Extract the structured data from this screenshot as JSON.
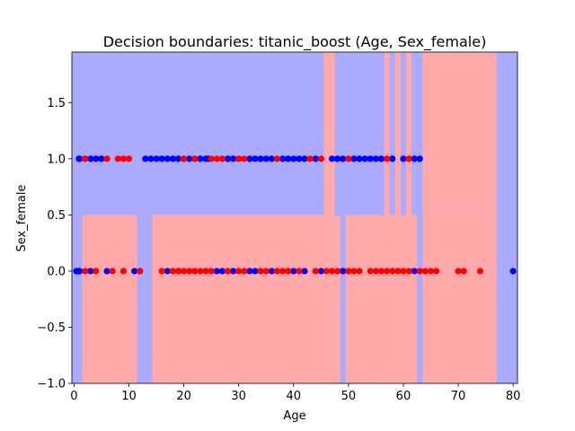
{
  "chart_data": {
    "type": "scatter",
    "title": "Decision boundaries: titanic_boost (Age, Sex_female)",
    "xlabel": "Age",
    "ylabel": "Sex_female",
    "xlim": [
      -0.4,
      80.8
    ],
    "ylim": [
      -1.0,
      1.95
    ],
    "xticks": [
      0,
      10,
      20,
      30,
      40,
      50,
      60,
      70,
      80
    ],
    "yticks": [
      -1.0,
      -0.5,
      0.0,
      0.5,
      1.0,
      1.5
    ],
    "x_tick_labels": [
      "0",
      "10",
      "20",
      "30",
      "40",
      "50",
      "60",
      "70",
      "80"
    ],
    "y_tick_labels": [
      "−1.0",
      "−0.5",
      "0.0",
      "0.5",
      "1.0",
      "1.5"
    ],
    "grid": false,
    "legend": "none",
    "colors": {
      "class_0_point": "#0000ff",
      "class_1_point": "#ff0000",
      "region_0": "#aaaaff",
      "region_1": "#ffaaaa"
    },
    "regions": [
      {
        "x0": 45.5,
        "x1": 47.5,
        "y0": 0.5,
        "y1": 1.95,
        "class": 1
      },
      {
        "x0": 56.5,
        "x1": 57.5,
        "y0": 0.5,
        "y1": 1.95,
        "class": 1
      },
      {
        "x0": 58.5,
        "x1": 59.5,
        "y0": 0.5,
        "y1": 1.95,
        "class": 1
      },
      {
        "x0": 60.5,
        "x1": 61.5,
        "y0": 0.5,
        "y1": 1.95,
        "class": 1
      },
      {
        "x0": 63.5,
        "x1": 77.0,
        "y0": 0.5,
        "y1": 1.95,
        "class": 1
      },
      {
        "x0": 1.5,
        "x1": 11.5,
        "y0": -1.0,
        "y1": 0.5,
        "class": 1
      },
      {
        "x0": 14.2,
        "x1": 48.5,
        "y0": -1.0,
        "y1": 0.5,
        "class": 1
      },
      {
        "x0": 49.5,
        "x1": 62.5,
        "y0": -1.0,
        "y1": 0.5,
        "class": 1
      },
      {
        "x0": 63.5,
        "x1": 77.0,
        "y0": -1.0,
        "y1": 0.5,
        "class": 1
      }
    ],
    "series": [
      {
        "class": 0,
        "points": [
          [
            0.9,
            1
          ],
          [
            1,
            1
          ],
          [
            2,
            1
          ],
          [
            3,
            1
          ],
          [
            4,
            1
          ],
          [
            5,
            1
          ],
          [
            13,
            1
          ],
          [
            14,
            1
          ],
          [
            15,
            1
          ],
          [
            16,
            1
          ],
          [
            17,
            1
          ],
          [
            18,
            1
          ],
          [
            19,
            1
          ],
          [
            20,
            1
          ],
          [
            21,
            1
          ],
          [
            22,
            1
          ],
          [
            23,
            1
          ],
          [
            24,
            1
          ],
          [
            24.5,
            1
          ],
          [
            28,
            1
          ],
          [
            29,
            1
          ],
          [
            30,
            1
          ],
          [
            32,
            1
          ],
          [
            33,
            1
          ],
          [
            34,
            1
          ],
          [
            35,
            1
          ],
          [
            36,
            1
          ],
          [
            38,
            1
          ],
          [
            39,
            1
          ],
          [
            40,
            1
          ],
          [
            41,
            1
          ],
          [
            42,
            1
          ],
          [
            44,
            1
          ],
          [
            47,
            1
          ],
          [
            48,
            1
          ],
          [
            49,
            1
          ],
          [
            51,
            1
          ],
          [
            52,
            1
          ],
          [
            53,
            1
          ],
          [
            54,
            1
          ],
          [
            55,
            1
          ],
          [
            56,
            1
          ],
          [
            58,
            1
          ],
          [
            60,
            1
          ],
          [
            62,
            1
          ],
          [
            63,
            1
          ],
          [
            0.4,
            0
          ],
          [
            0.7,
            0
          ],
          [
            0.9,
            0
          ],
          [
            1,
            0
          ],
          [
            3,
            0
          ],
          [
            6,
            0
          ],
          [
            11,
            0
          ],
          [
            12,
            0
          ],
          [
            17,
            0
          ],
          [
            19,
            0
          ],
          [
            26,
            0
          ],
          [
            27,
            0
          ],
          [
            29,
            0
          ],
          [
            32,
            0
          ],
          [
            33,
            0
          ],
          [
            36,
            0
          ],
          [
            40,
            0
          ],
          [
            42,
            0
          ],
          [
            45,
            0
          ],
          [
            49,
            0
          ],
          [
            62,
            0
          ],
          [
            80,
            0
          ]
        ]
      },
      {
        "class": 1,
        "points": [
          [
            2,
            1
          ],
          [
            6,
            1
          ],
          [
            8,
            1
          ],
          [
            9,
            1
          ],
          [
            10,
            1
          ],
          [
            20,
            1
          ],
          [
            22,
            1
          ],
          [
            25,
            1
          ],
          [
            26,
            1
          ],
          [
            27,
            1
          ],
          [
            30,
            1
          ],
          [
            31,
            1
          ],
          [
            37,
            1
          ],
          [
            43,
            1
          ],
          [
            45,
            1
          ],
          [
            50,
            1
          ],
          [
            57,
            1
          ],
          [
            61,
            1
          ],
          [
            2,
            0
          ],
          [
            4,
            0
          ],
          [
            7,
            0
          ],
          [
            9,
            0
          ],
          [
            12,
            0
          ],
          [
            16,
            0
          ],
          [
            18,
            0
          ],
          [
            19,
            0
          ],
          [
            20,
            0
          ],
          [
            21,
            0
          ],
          [
            22,
            0
          ],
          [
            23,
            0
          ],
          [
            24,
            0
          ],
          [
            25,
            0
          ],
          [
            28,
            0
          ],
          [
            30,
            0
          ],
          [
            31,
            0
          ],
          [
            34,
            0
          ],
          [
            35,
            0
          ],
          [
            37,
            0
          ],
          [
            38,
            0
          ],
          [
            39,
            0
          ],
          [
            41,
            0
          ],
          [
            44,
            0
          ],
          [
            46,
            0
          ],
          [
            47,
            0
          ],
          [
            48,
            0
          ],
          [
            50,
            0
          ],
          [
            51,
            0
          ],
          [
            52,
            0
          ],
          [
            54,
            0
          ],
          [
            55,
            0
          ],
          [
            56,
            0
          ],
          [
            57,
            0
          ],
          [
            58,
            0
          ],
          [
            59,
            0
          ],
          [
            60,
            0
          ],
          [
            61,
            0
          ],
          [
            63,
            0
          ],
          [
            64,
            0
          ],
          [
            65,
            0
          ],
          [
            66,
            0
          ],
          [
            70,
            0
          ],
          [
            71,
            0
          ],
          [
            74,
            0
          ]
        ]
      }
    ]
  }
}
